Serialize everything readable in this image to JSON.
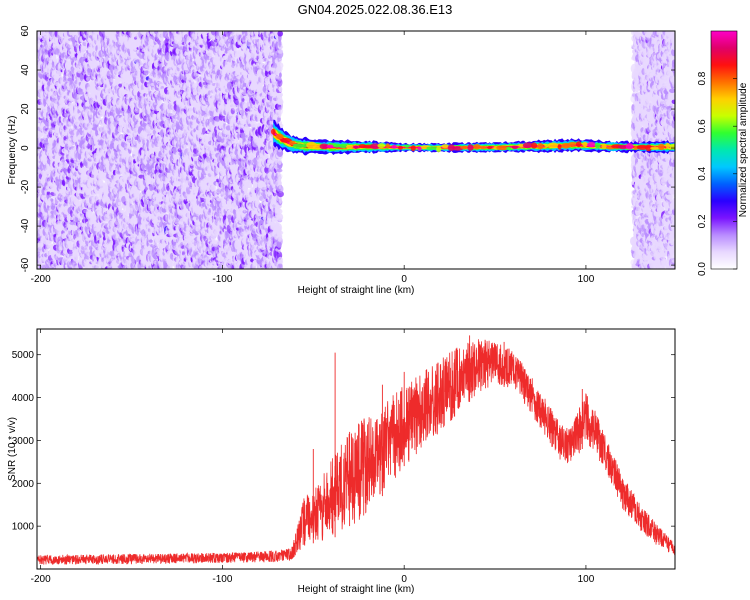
{
  "title": "GN04.2025.022.08.36.E13",
  "colors": {
    "spectrum_ramp": [
      "#ffffff",
      "#e8d8ff",
      "#b98cff",
      "#7a14ff",
      "#2a00ff",
      "#0060ff",
      "#00c8ff",
      "#00e8b0",
      "#30ff30",
      "#c8ff00",
      "#ffd000",
      "#ff7000",
      "#ff1010",
      "#e0006a",
      "#ff00c8"
    ],
    "snr_line": "#ee2b2b"
  },
  "chart_data": [
    {
      "type": "heatmap",
      "xlabel": "Height of straight line (km)",
      "ylabel": "Frequency (Hz)",
      "xlim": [
        -202,
        149
      ],
      "ylim": [
        -62,
        60
      ],
      "xticks": [
        -200,
        -100,
        0,
        100
      ],
      "yticks": [
        60,
        40,
        20,
        0,
        -20,
        -40,
        -60
      ],
      "grid": false,
      "colorbar": {
        "label": "Normalized spectral amplitude",
        "range": [
          0.0,
          1.0
        ],
        "ticks": [
          0.0,
          0.2,
          0.4,
          0.6,
          0.8
        ]
      },
      "regions": [
        {
          "kind": "noise",
          "x_range": [
            -202,
            -68
          ],
          "freq_range": [
            -62,
            60
          ],
          "amplitude_range": [
            0.0,
            0.2
          ]
        },
        {
          "kind": "noise",
          "x_range": [
            -68,
            126
          ],
          "freq_range": [
            -62,
            60
          ],
          "amplitude_range": [
            0.0,
            0.0
          ]
        },
        {
          "kind": "noise",
          "x_range": [
            126,
            149
          ],
          "freq_range": [
            -62,
            60
          ],
          "amplitude_range": [
            0.0,
            0.15
          ]
        }
      ],
      "ridge": {
        "description": "narrow-band signal near 0 Hz",
        "points": [
          [
            -72,
            8
          ],
          [
            -68,
            5
          ],
          [
            -62,
            2
          ],
          [
            -55,
            1
          ],
          [
            -40,
            0.5
          ],
          [
            -20,
            0.6
          ],
          [
            0,
            0.3
          ],
          [
            20,
            0.2
          ],
          [
            50,
            0.4
          ],
          [
            80,
            1.0
          ],
          [
            95,
            1.5
          ],
          [
            110,
            0.8
          ],
          [
            130,
            0.5
          ],
          [
            149,
            0.5
          ]
        ],
        "peak_amplitude": 1.0,
        "band_halfwidth_hz": [
          [
            -72,
            6
          ],
          [
            -60,
            4
          ],
          [
            -20,
            3
          ],
          [
            0,
            2
          ],
          [
            50,
            2.5
          ],
          [
            90,
            3
          ],
          [
            130,
            2.5
          ],
          [
            149,
            3
          ]
        ]
      }
    },
    {
      "type": "line",
      "xlabel": "Height of straight line (km)",
      "ylabel": "SNR (10 * v/v)",
      "xlim": [
        -202,
        149
      ],
      "ylim": [
        0,
        5600
      ],
      "xticks": [
        -200,
        -100,
        0,
        100
      ],
      "yticks": [
        1000,
        2000,
        3000,
        4000,
        5000
      ],
      "grid": false,
      "series": [
        {
          "color": "#ee2b2b",
          "envelope": {
            "x": [
              -202,
              -150,
              -100,
              -70,
              -62,
              -58,
              -55,
              -50,
              -45,
              -40,
              -35,
              -30,
              -25,
              -20,
              -10,
              0,
              10,
              20,
              30,
              40,
              50,
              60,
              70,
              80,
              88,
              92,
              96,
              100,
              105,
              110,
              115,
              120,
              130,
              140,
              149
            ],
            "low": [
              100,
              110,
              140,
              160,
              200,
              400,
              500,
              600,
              650,
              700,
              800,
              1000,
              1100,
              1300,
              1800,
              2400,
              2800,
              3200,
              3600,
              4100,
              4300,
              4200,
              3600,
              2900,
              2400,
              2400,
              2700,
              2900,
              2700,
              2300,
              1900,
              1400,
              900,
              500,
              300
            ],
            "high": [
              320,
              350,
              380,
              430,
              500,
              1100,
              1700,
              1800,
              2200,
              2600,
              2900,
              3200,
              3400,
              3600,
              3900,
              4300,
              4600,
              4900,
              5200,
              5400,
              5300,
              5100,
              4500,
              3800,
              3300,
              3300,
              3800,
              4100,
              3700,
              3200,
              2700,
              2200,
              1500,
              1000,
              600
            ]
          },
          "spikes": [
            [
              -50,
              2800
            ],
            [
              -38,
              5050
            ],
            [
              -30,
              3200
            ],
            [
              -12,
              4300
            ],
            [
              0,
              4600
            ],
            [
              36,
              5450
            ],
            [
              55,
              5300
            ],
            [
              98,
              4200
            ]
          ]
        }
      ]
    }
  ]
}
